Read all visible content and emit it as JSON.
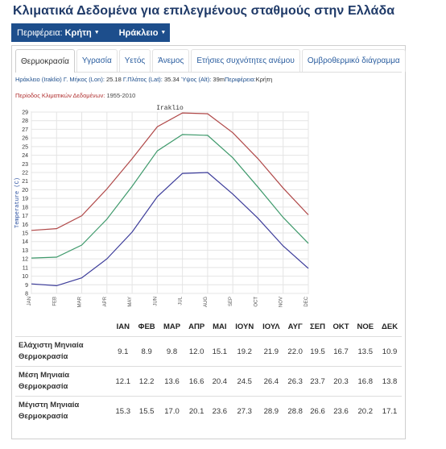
{
  "page": {
    "title": "Κλιματικά Δεδομένα για επιλεγμένους σταθμούς στην Ελλάδα"
  },
  "navbar": {
    "region_label": "Περιφέρεια:",
    "region_value": "Κρήτη",
    "station_value": "Ηράκλειο"
  },
  "tabs": [
    {
      "label": "Θερμοκρασία",
      "active": true
    },
    {
      "label": "Υγρασία"
    },
    {
      "label": "Υετός"
    },
    {
      "label": "Άνεμος"
    },
    {
      "label": "Ετήσιες συχνότητες ανέμου"
    },
    {
      "label": "Ομβροθερμικό διάγραμμα"
    }
  ],
  "station_info": {
    "name": "Ηράκλειο (Iraklio)",
    "lon_label": "Γ. Μήκος (Lon):",
    "lon": "25.18",
    "lat_label": "Γ.Πλάτος (Lat):",
    "lat": "35.34",
    "alt_label": "Ύψος (Alt):",
    "alt": "39m",
    "region_label": "Περιφέρεια:",
    "region": "Κρήτη"
  },
  "period": {
    "label": "Περίοδος Κλιματικών Δεδομένων:",
    "value": "1955-2010"
  },
  "chart_data": {
    "type": "line",
    "title": "Iraklio",
    "xlabel": "",
    "ylabel": "Temperature (C)",
    "categories": [
      "JAN",
      "FEB",
      "MAR",
      "APR",
      "MAY",
      "JUN",
      "JUL",
      "AUG",
      "SEP",
      "OCT",
      "NOV",
      "DEC"
    ],
    "ylim": [
      8,
      29
    ],
    "yticks": [
      8,
      9,
      10,
      11,
      12,
      13,
      14,
      15,
      16,
      17,
      18,
      19,
      20,
      21,
      22,
      23,
      24,
      25,
      26,
      27,
      28,
      29
    ],
    "grid": true,
    "series": [
      {
        "values": [
          15.3,
          15.5,
          17.0,
          20.1,
          23.6,
          27.3,
          28.9,
          28.8,
          26.6,
          23.6,
          20.2,
          17.1
        ],
        "color": "#b04848"
      },
      {
        "values": [
          12.1,
          12.2,
          13.6,
          16.6,
          20.4,
          24.5,
          26.4,
          26.3,
          23.7,
          20.3,
          16.8,
          13.8
        ],
        "color": "#3f9a6c"
      },
      {
        "values": [
          9.1,
          8.9,
          9.8,
          12.0,
          15.1,
          19.2,
          21.9,
          22.0,
          19.5,
          16.7,
          13.5,
          10.9
        ],
        "color": "#3c3c9a"
      }
    ]
  },
  "table": {
    "headers": [
      "",
      "ΙΑΝ",
      "ΦΕΒ",
      "ΜΑΡ",
      "ΑΠΡ",
      "ΜΑΙ",
      "ΙΟΥΝ",
      "ΙΟΥΛ",
      "ΑΥΓ",
      "ΣΕΠ",
      "ΟΚΤ",
      "ΝΟΕ",
      "ΔΕΚ"
    ],
    "rows": [
      {
        "label_line1": "Ελάχιστη Μηνιαία",
        "label_line2": "Θερμοκρασία",
        "values": [
          "9.1",
          "8.9",
          "9.8",
          "12.0",
          "15.1",
          "19.2",
          "21.9",
          "22.0",
          "19.5",
          "16.7",
          "13.5",
          "10.9"
        ]
      },
      {
        "label_line1": "Μέση Μηνιαία",
        "label_line2": "Θερμοκρασία",
        "values": [
          "12.1",
          "12.2",
          "13.6",
          "16.6",
          "20.4",
          "24.5",
          "26.4",
          "26.3",
          "23.7",
          "20.3",
          "16.8",
          "13.8"
        ]
      },
      {
        "label_line1": "Μέγιστη Μηνιαία",
        "label_line2": "Θερμοκρασία",
        "values": [
          "15.3",
          "15.5",
          "17.0",
          "20.1",
          "23.6",
          "27.3",
          "28.9",
          "28.8",
          "26.6",
          "23.6",
          "20.2",
          "17.1"
        ]
      }
    ]
  }
}
